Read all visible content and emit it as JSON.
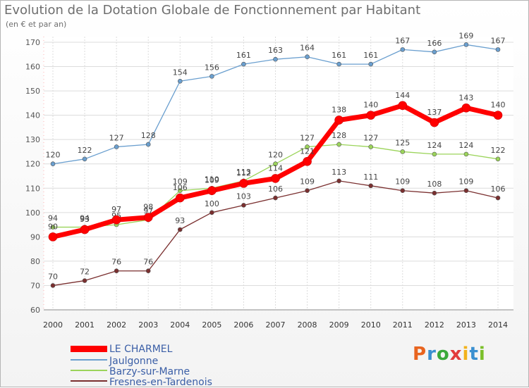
{
  "header": {
    "title": "Evolution de la Dotation Globale de Fonctionnement par Habitant",
    "subtitle": "(en € et par an)"
  },
  "logo": {
    "text": "Proxiti",
    "colors": [
      "#e8641f",
      "#3a8fd0",
      "#3aa93a",
      "#e23b3b",
      "#f2b21b",
      "#3a8fd0",
      "#7bbf2a"
    ]
  },
  "chart_data": {
    "type": "line",
    "categories": [
      "2000",
      "2001",
      "2002",
      "2003",
      "2004",
      "2005",
      "2006",
      "2007",
      "2008",
      "2009",
      "2010",
      "2011",
      "2012",
      "2013",
      "2014"
    ],
    "ylim": [
      60,
      170
    ],
    "yticks": [
      60,
      70,
      80,
      90,
      100,
      110,
      120,
      130,
      140,
      150,
      160,
      170
    ],
    "grid": true,
    "legend_position": "bottom-left",
    "series": [
      {
        "name": "Jaulgonne",
        "color": "#6a9fcf",
        "values": [
          120,
          122,
          127,
          128,
          154,
          156,
          161,
          163,
          164,
          161,
          161,
          167,
          166,
          169,
          167
        ],
        "labels": [
          "120",
          "122",
          "127",
          "128",
          "154",
          "156",
          "161",
          "163",
          "164",
          "161",
          "161",
          "167",
          "166",
          "169",
          "167"
        ]
      },
      {
        "name": "Barzy-sur-Marne",
        "color": "#9bd45a",
        "values": [
          94,
          94,
          95,
          97,
          109,
          110,
          113,
          120,
          127,
          128,
          127,
          125,
          124,
          124,
          122
        ],
        "labels": [
          "94",
          "94",
          "95",
          "97",
          "109",
          "110",
          "113",
          "120",
          "127",
          "128",
          "127",
          "125",
          "124",
          "124",
          "122"
        ]
      },
      {
        "name": "Fresnes-en-Tardenois",
        "color": "#7a2f2f",
        "values": [
          70,
          72,
          76,
          76,
          93,
          100,
          103,
          106,
          109,
          113,
          111,
          109,
          108,
          109,
          106
        ],
        "labels": [
          "70",
          "72",
          "76",
          "76",
          "93",
          "100",
          "103",
          "106",
          "109",
          "113",
          "111",
          "109",
          "108",
          "109",
          "106"
        ]
      },
      {
        "name": "LE CHARMEL",
        "color": "#ff0000",
        "values": [
          90,
          93,
          97,
          98,
          106,
          109,
          112,
          114,
          121,
          138,
          140,
          144,
          137,
          143,
          140
        ],
        "labels": [
          "90",
          "93",
          "97",
          "98",
          "106",
          "109",
          "112",
          "114",
          "121",
          "138",
          "140",
          "144",
          "137",
          "143",
          "140"
        ]
      }
    ],
    "legend_order": [
      "LE CHARMEL",
      "Jaulgonne",
      "Barzy-sur-Marne",
      "Fresnes-en-Tardenois"
    ]
  }
}
